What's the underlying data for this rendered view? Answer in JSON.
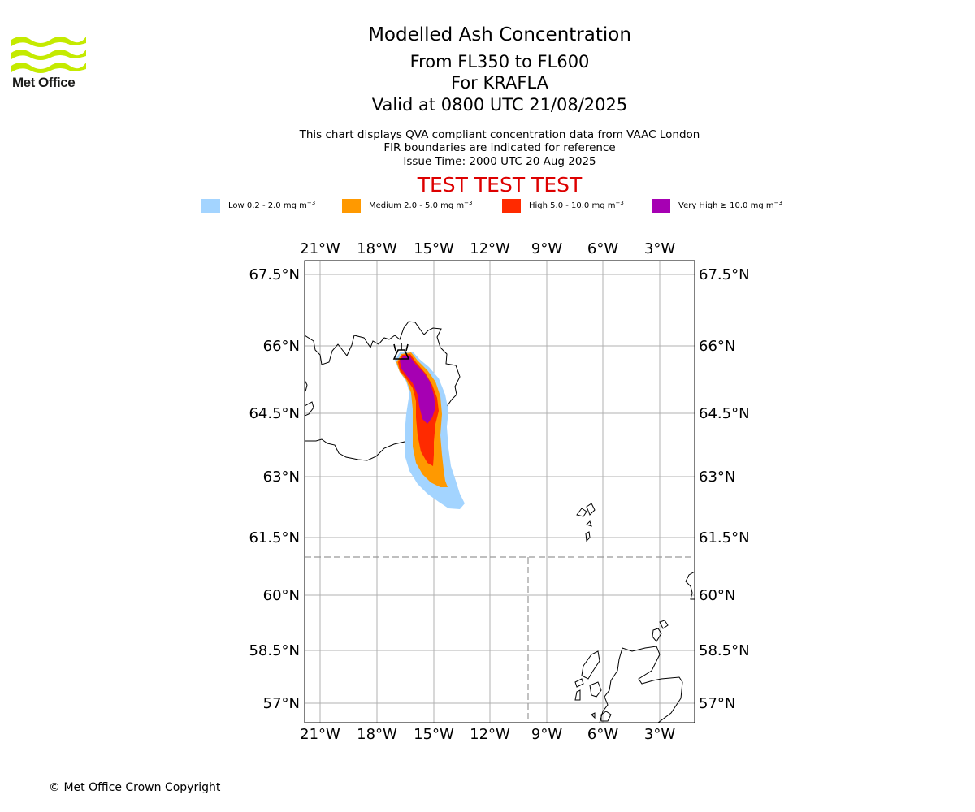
{
  "header": {
    "logo_text": "Met Office",
    "title": "Modelled Ash Concentration",
    "subtitle_levels": "From FL350 to FL600",
    "subtitle_volcano": "For KRAFLA",
    "subtitle_valid": "Valid at 0800 UTC 21/08/2025",
    "note_1": "This chart displays QVA compliant concentration data from VAAC London",
    "note_2": "FIR boundaries are indicated for reference",
    "note_3": "Issue Time: 2000 UTC 20 Aug 2025",
    "test_banner": "TEST TEST TEST"
  },
  "legend": [
    {
      "label": "Low 0.2 - 2.0 mg m",
      "unit_exp": "−3",
      "color": "#a3d4ff"
    },
    {
      "label": "Medium 2.0 - 5.0 mg m",
      "unit_exp": "−3",
      "color": "#ff9900"
    },
    {
      "label": "High 5.0 - 10.0 mg m",
      "unit_exp": "−3",
      "color": "#ff2a00"
    },
    {
      "label": "Very High  ≥  10.0 mg m",
      "unit_exp": "−3",
      "color": "#a600b3"
    }
  ],
  "map": {
    "lon_ticks": [
      "21°W",
      "18°W",
      "15°W",
      "12°W",
      "9°W",
      "6°W",
      "3°W"
    ],
    "lat_ticks": [
      "67.5°N",
      "66°N",
      "64.5°N",
      "63°N",
      "61.5°N",
      "60°N",
      "58.5°N",
      "57°N"
    ],
    "volcano_marker": "volcano-symbol",
    "gridline_color": "#b0b0b0",
    "fir_boundary_color": "#999999"
  },
  "footer": {
    "copyright": "© Met Office Crown Copyright"
  }
}
